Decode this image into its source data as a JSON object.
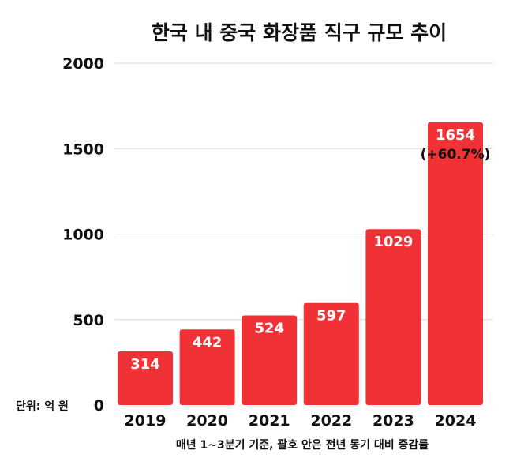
{
  "chart_data": {
    "type": "bar",
    "title": "한국 내 중국 화장품 직구 규모 추이",
    "categories": [
      "2019",
      "2020",
      "2021",
      "2022",
      "2023",
      "2024"
    ],
    "values": [
      314,
      442,
      524,
      597,
      1029,
      1654
    ],
    "data_labels": [
      "314",
      "442",
      "524",
      "597",
      "1029",
      "1654"
    ],
    "annotation": {
      "category": "2024",
      "text": "(+60.7%)"
    },
    "ylim": [
      0,
      2000
    ],
    "yticks": [
      0,
      500,
      1000,
      1500,
      2000
    ],
    "ytick_labels": [
      "0",
      "500",
      "1000",
      "1500",
      "2000"
    ],
    "unit_label": "단위: 억 원",
    "footnote": "매년 1~3분기 기준, 괄호 안은 전년 동기 대비 증감률",
    "grid": true,
    "bar_color": "#f03236",
    "grid_color": "#d9d9d9"
  }
}
